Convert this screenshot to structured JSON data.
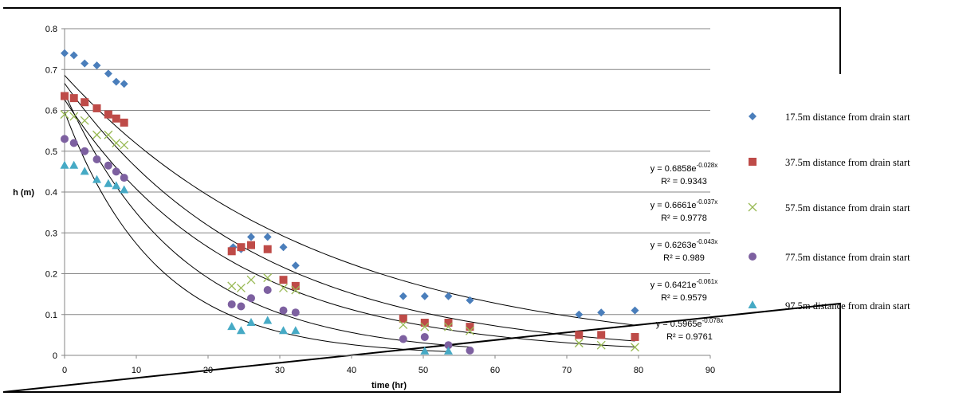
{
  "chart_data": {
    "type": "scatter",
    "title": "",
    "xlabel": "time (hr)",
    "ylabel": "h (m)",
    "xlim": [
      0,
      90
    ],
    "ylim": [
      0,
      0.8
    ],
    "xticks": [
      "0",
      "10",
      "20",
      "30",
      "40",
      "50",
      "60",
      "70",
      "80",
      "90"
    ],
    "yticks": [
      "0",
      "0.1",
      "0.2",
      "0.3",
      "0.4",
      "0.5",
      "0.6",
      "0.7",
      "0.8"
    ],
    "grid": "horizontal",
    "legend_position": "right",
    "series": [
      {
        "name": "17.5m distance from drain start",
        "marker": "diamond",
        "color": "#4A7EBB",
        "x": [
          0,
          1.3,
          2.8,
          4.5,
          6.1,
          7.2,
          8.3,
          23.5,
          24.6,
          26,
          28.3,
          30.5,
          32.2,
          47.2,
          50.2,
          53.5,
          56.5,
          71.7,
          74.8,
          79.5
        ],
        "y": [
          0.74,
          0.735,
          0.715,
          0.71,
          0.69,
          0.67,
          0.665,
          0.265,
          0.26,
          0.29,
          0.29,
          0.265,
          0.22,
          0.145,
          0.145,
          0.145,
          0.135,
          0.1,
          0.105,
          0.11
        ],
        "trend": {
          "a": 0.6858,
          "b": 0.028,
          "equation": "y = 0.6858e",
          "exponent": "-0.028x",
          "r2": "R² = 0.9343"
        }
      },
      {
        "name": "37.5m distance from drain start",
        "marker": "square",
        "color": "#BE4B48",
        "x": [
          0,
          1.3,
          2.8,
          4.5,
          6.1,
          7.2,
          8.3,
          23.3,
          24.6,
          26,
          28.3,
          30.5,
          32.2,
          47.2,
          50.2,
          53.5,
          56.5,
          71.7,
          74.8,
          79.5
        ],
        "y": [
          0.635,
          0.63,
          0.62,
          0.605,
          0.59,
          0.58,
          0.57,
          0.255,
          0.265,
          0.27,
          0.26,
          0.185,
          0.17,
          0.09,
          0.08,
          0.08,
          0.07,
          0.05,
          0.05,
          0.045
        ],
        "trend": {
          "a": 0.6661,
          "b": 0.037,
          "equation": "y = 0.6661e",
          "exponent": "-0.037x",
          "r2": "R² = 0.9778"
        }
      },
      {
        "name": "57.5m distance from drain start",
        "marker": "x",
        "color": "#98B954",
        "x": [
          0,
          1.3,
          2.8,
          4.5,
          6.1,
          7.2,
          8.3,
          23.3,
          24.6,
          26,
          28.3,
          30.5,
          32.2,
          47.2,
          50.2,
          53.5,
          56.5,
          71.7,
          74.8,
          79.5
        ],
        "y": [
          0.59,
          0.585,
          0.575,
          0.54,
          0.54,
          0.52,
          0.515,
          0.17,
          0.165,
          0.185,
          0.19,
          0.165,
          0.16,
          0.075,
          0.07,
          0.07,
          0.06,
          0.03,
          0.025,
          0.02
        ],
        "trend": {
          "a": 0.6263,
          "b": 0.043,
          "equation": "y = 0.6263e",
          "exponent": "-0.043x",
          "r2": "R² = 0.989"
        }
      },
      {
        "name": "77.5m distance from drain start",
        "marker": "circle",
        "color": "#7D60A0",
        "x": [
          0,
          1.3,
          2.8,
          4.5,
          6.1,
          7.2,
          8.3,
          23.3,
          24.6,
          26,
          28.3,
          30.5,
          32.2,
          47.2,
          50.2,
          53.5,
          56.5
        ],
        "y": [
          0.53,
          0.52,
          0.5,
          0.48,
          0.465,
          0.45,
          0.435,
          0.125,
          0.12,
          0.14,
          0.16,
          0.11,
          0.105,
          0.04,
          0.045,
          0.025,
          0.012
        ],
        "trend": {
          "a": 0.6421,
          "b": 0.061,
          "equation": "y = 0.6421e",
          "exponent": "-0.061x",
          "r2": "R² = 0.9579"
        }
      },
      {
        "name": "97.5m distance from drain start",
        "marker": "triangle",
        "color": "#46AAC5",
        "x": [
          0,
          1.3,
          2.8,
          4.5,
          6.1,
          7.2,
          8.3,
          23.3,
          24.6,
          26,
          28.3,
          30.5,
          32.2,
          50.2,
          53.5
        ],
        "y": [
          0.465,
          0.465,
          0.45,
          0.43,
          0.42,
          0.415,
          0.405,
          0.07,
          0.06,
          0.08,
          0.085,
          0.06,
          0.06,
          0.01,
          0.01
        ],
        "trend": {
          "a": 0.5965,
          "b": 0.078,
          "equation": "y = 0.5965e",
          "exponent": "-0.078x",
          "r2": "R² = 0.9761"
        }
      }
    ]
  }
}
